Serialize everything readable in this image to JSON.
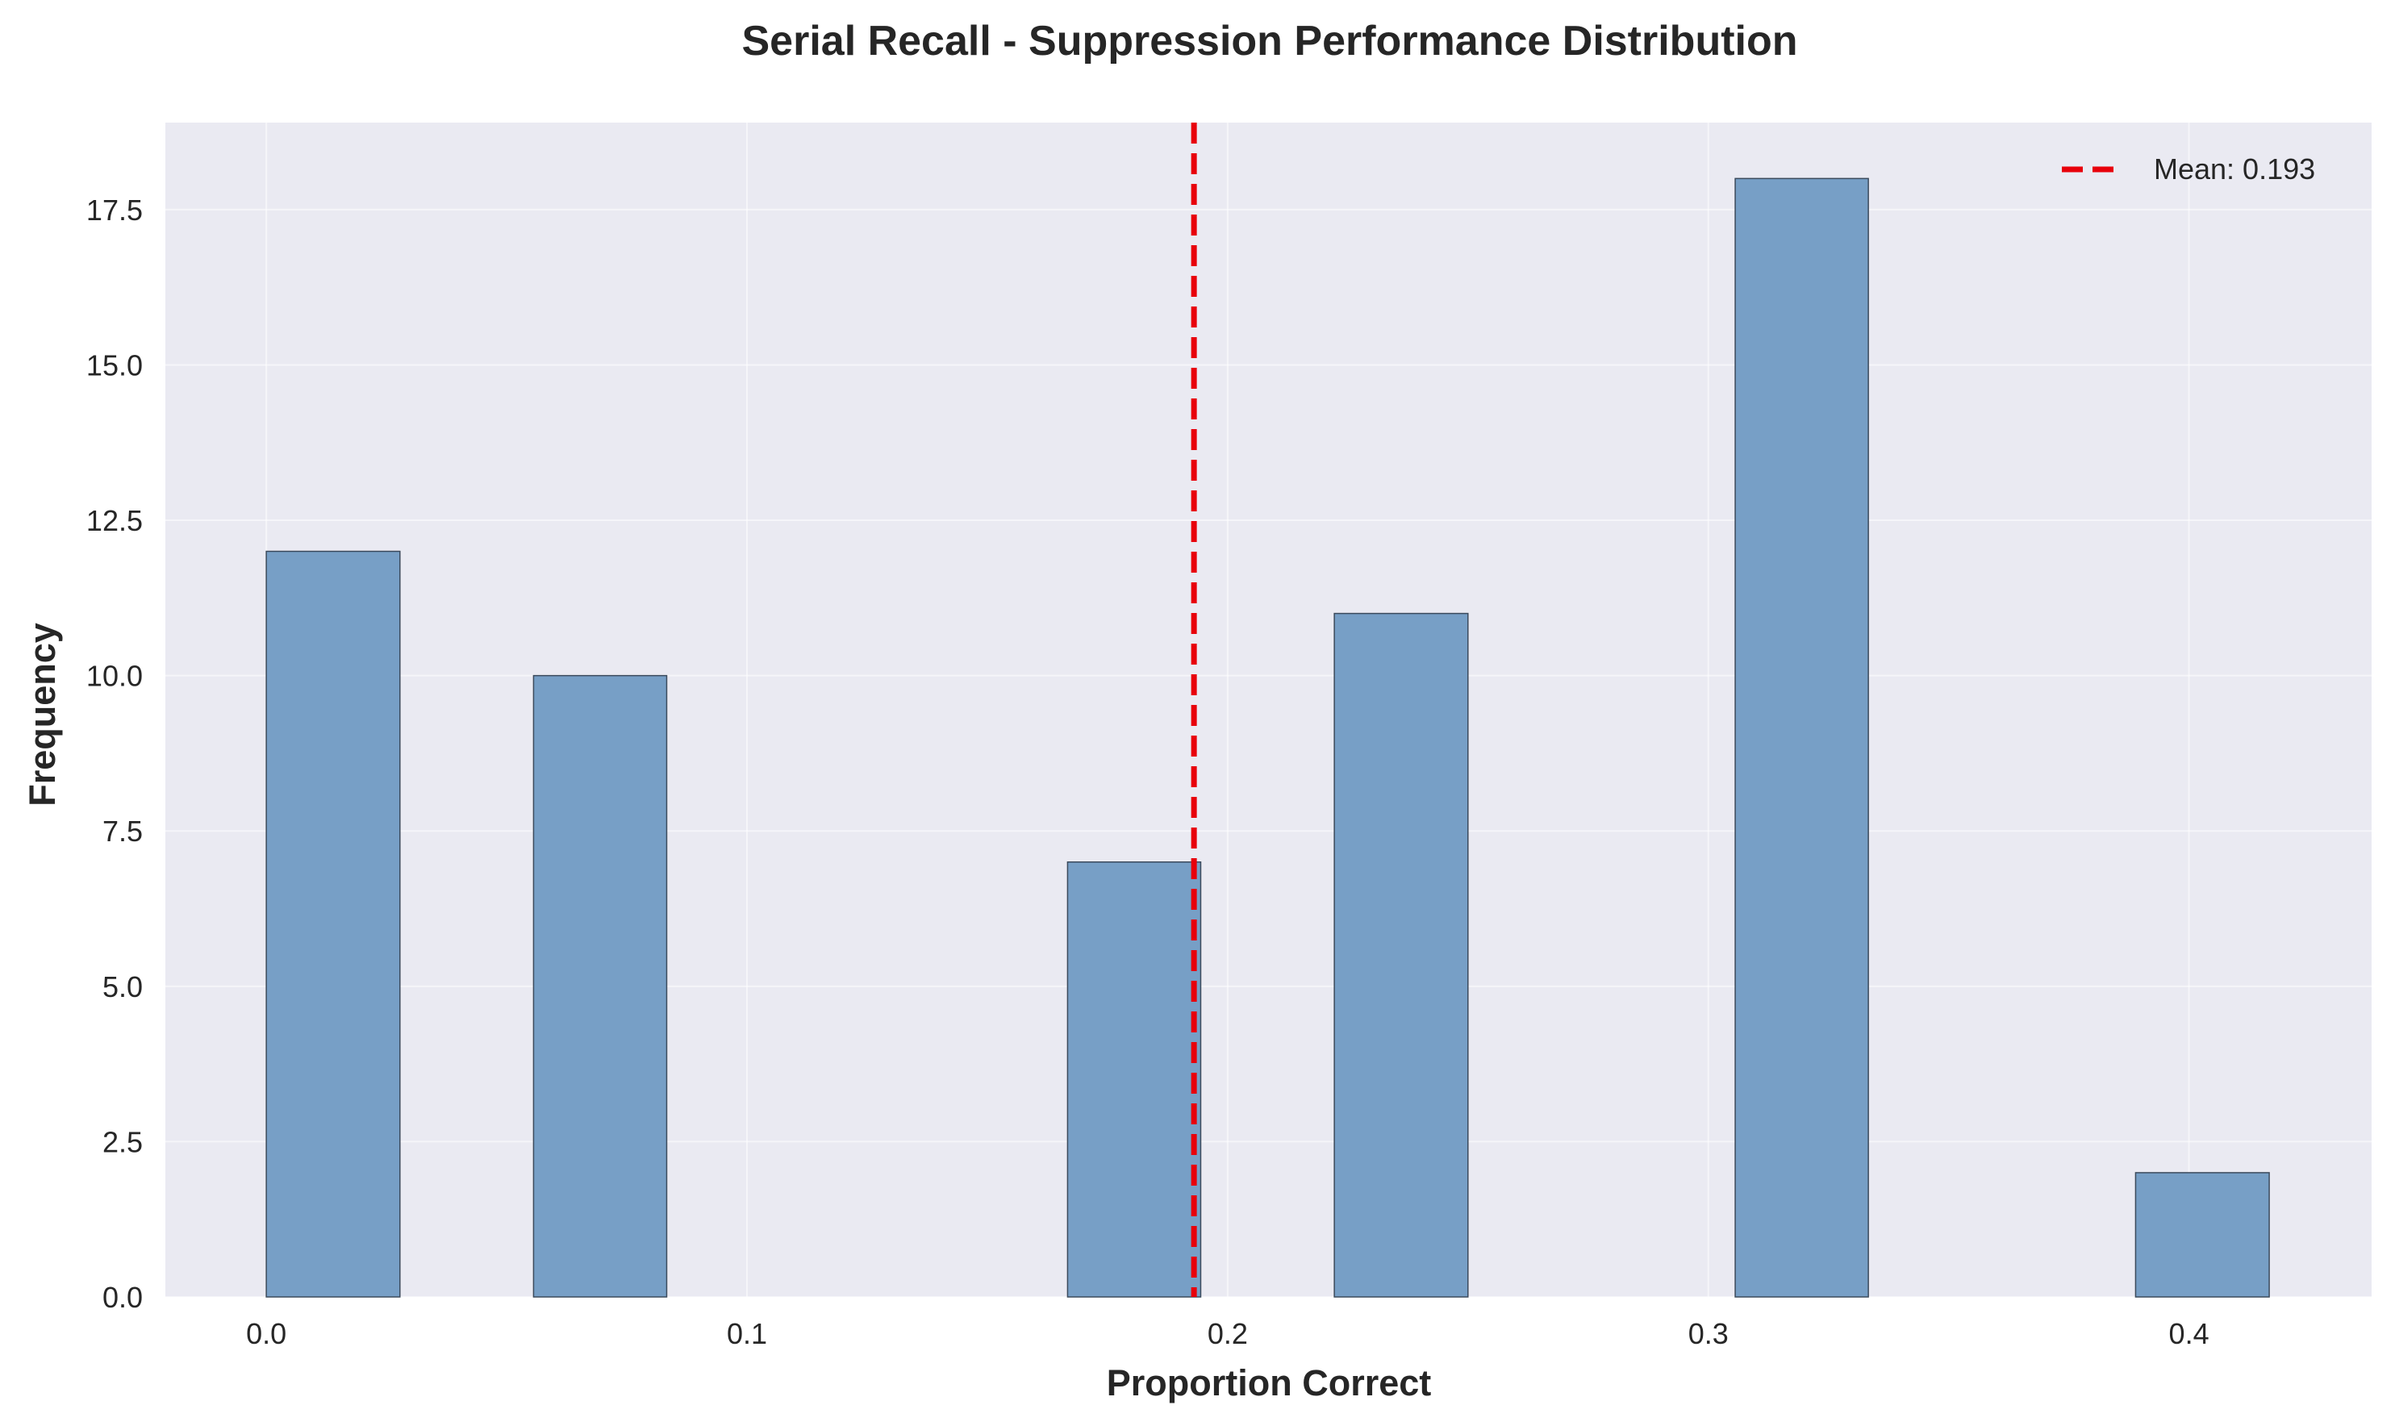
{
  "chart_data": {
    "type": "bar",
    "title": "Serial Recall - Suppression Performance Distribution",
    "xlabel": "Proportion Correct",
    "ylabel": "Frequency",
    "xlim": [
      -0.021,
      0.438
    ],
    "ylim": [
      0,
      18.9
    ],
    "x_ticks": [
      0.0,
      0.1,
      0.2,
      0.3,
      0.4
    ],
    "x_tick_labels": [
      "0.0",
      "0.1",
      "0.2",
      "0.3",
      "0.4"
    ],
    "y_ticks": [
      0,
      2.5,
      5,
      7.5,
      10,
      12.5,
      15,
      17.5
    ],
    "y_tick_labels": [
      "0.0",
      "2.5",
      "5.0",
      "7.5",
      "10.0",
      "12.5",
      "15.0",
      "17.5"
    ],
    "bins": [
      {
        "x0": 0.0,
        "x1": 0.0278,
        "count": 12
      },
      {
        "x0": 0.0556,
        "x1": 0.0833,
        "count": 10
      },
      {
        "x0": 0.1667,
        "x1": 0.1944,
        "count": 7
      },
      {
        "x0": 0.2222,
        "x1": 0.25,
        "count": 11
      },
      {
        "x0": 0.3056,
        "x1": 0.3333,
        "count": 18
      },
      {
        "x0": 0.3889,
        "x1": 0.4167,
        "count": 2
      }
    ],
    "mean": 0.193,
    "legend": {
      "entries": [
        "Mean: 0.193"
      ],
      "placement": "top-right"
    },
    "grid": true,
    "colors": {
      "bar_fill": "#779fc6",
      "bar_edge": "#3b4a5c",
      "mean_line": "#e8000b",
      "plot_background": "#eaeaf2",
      "grid": "#ffffff"
    }
  }
}
